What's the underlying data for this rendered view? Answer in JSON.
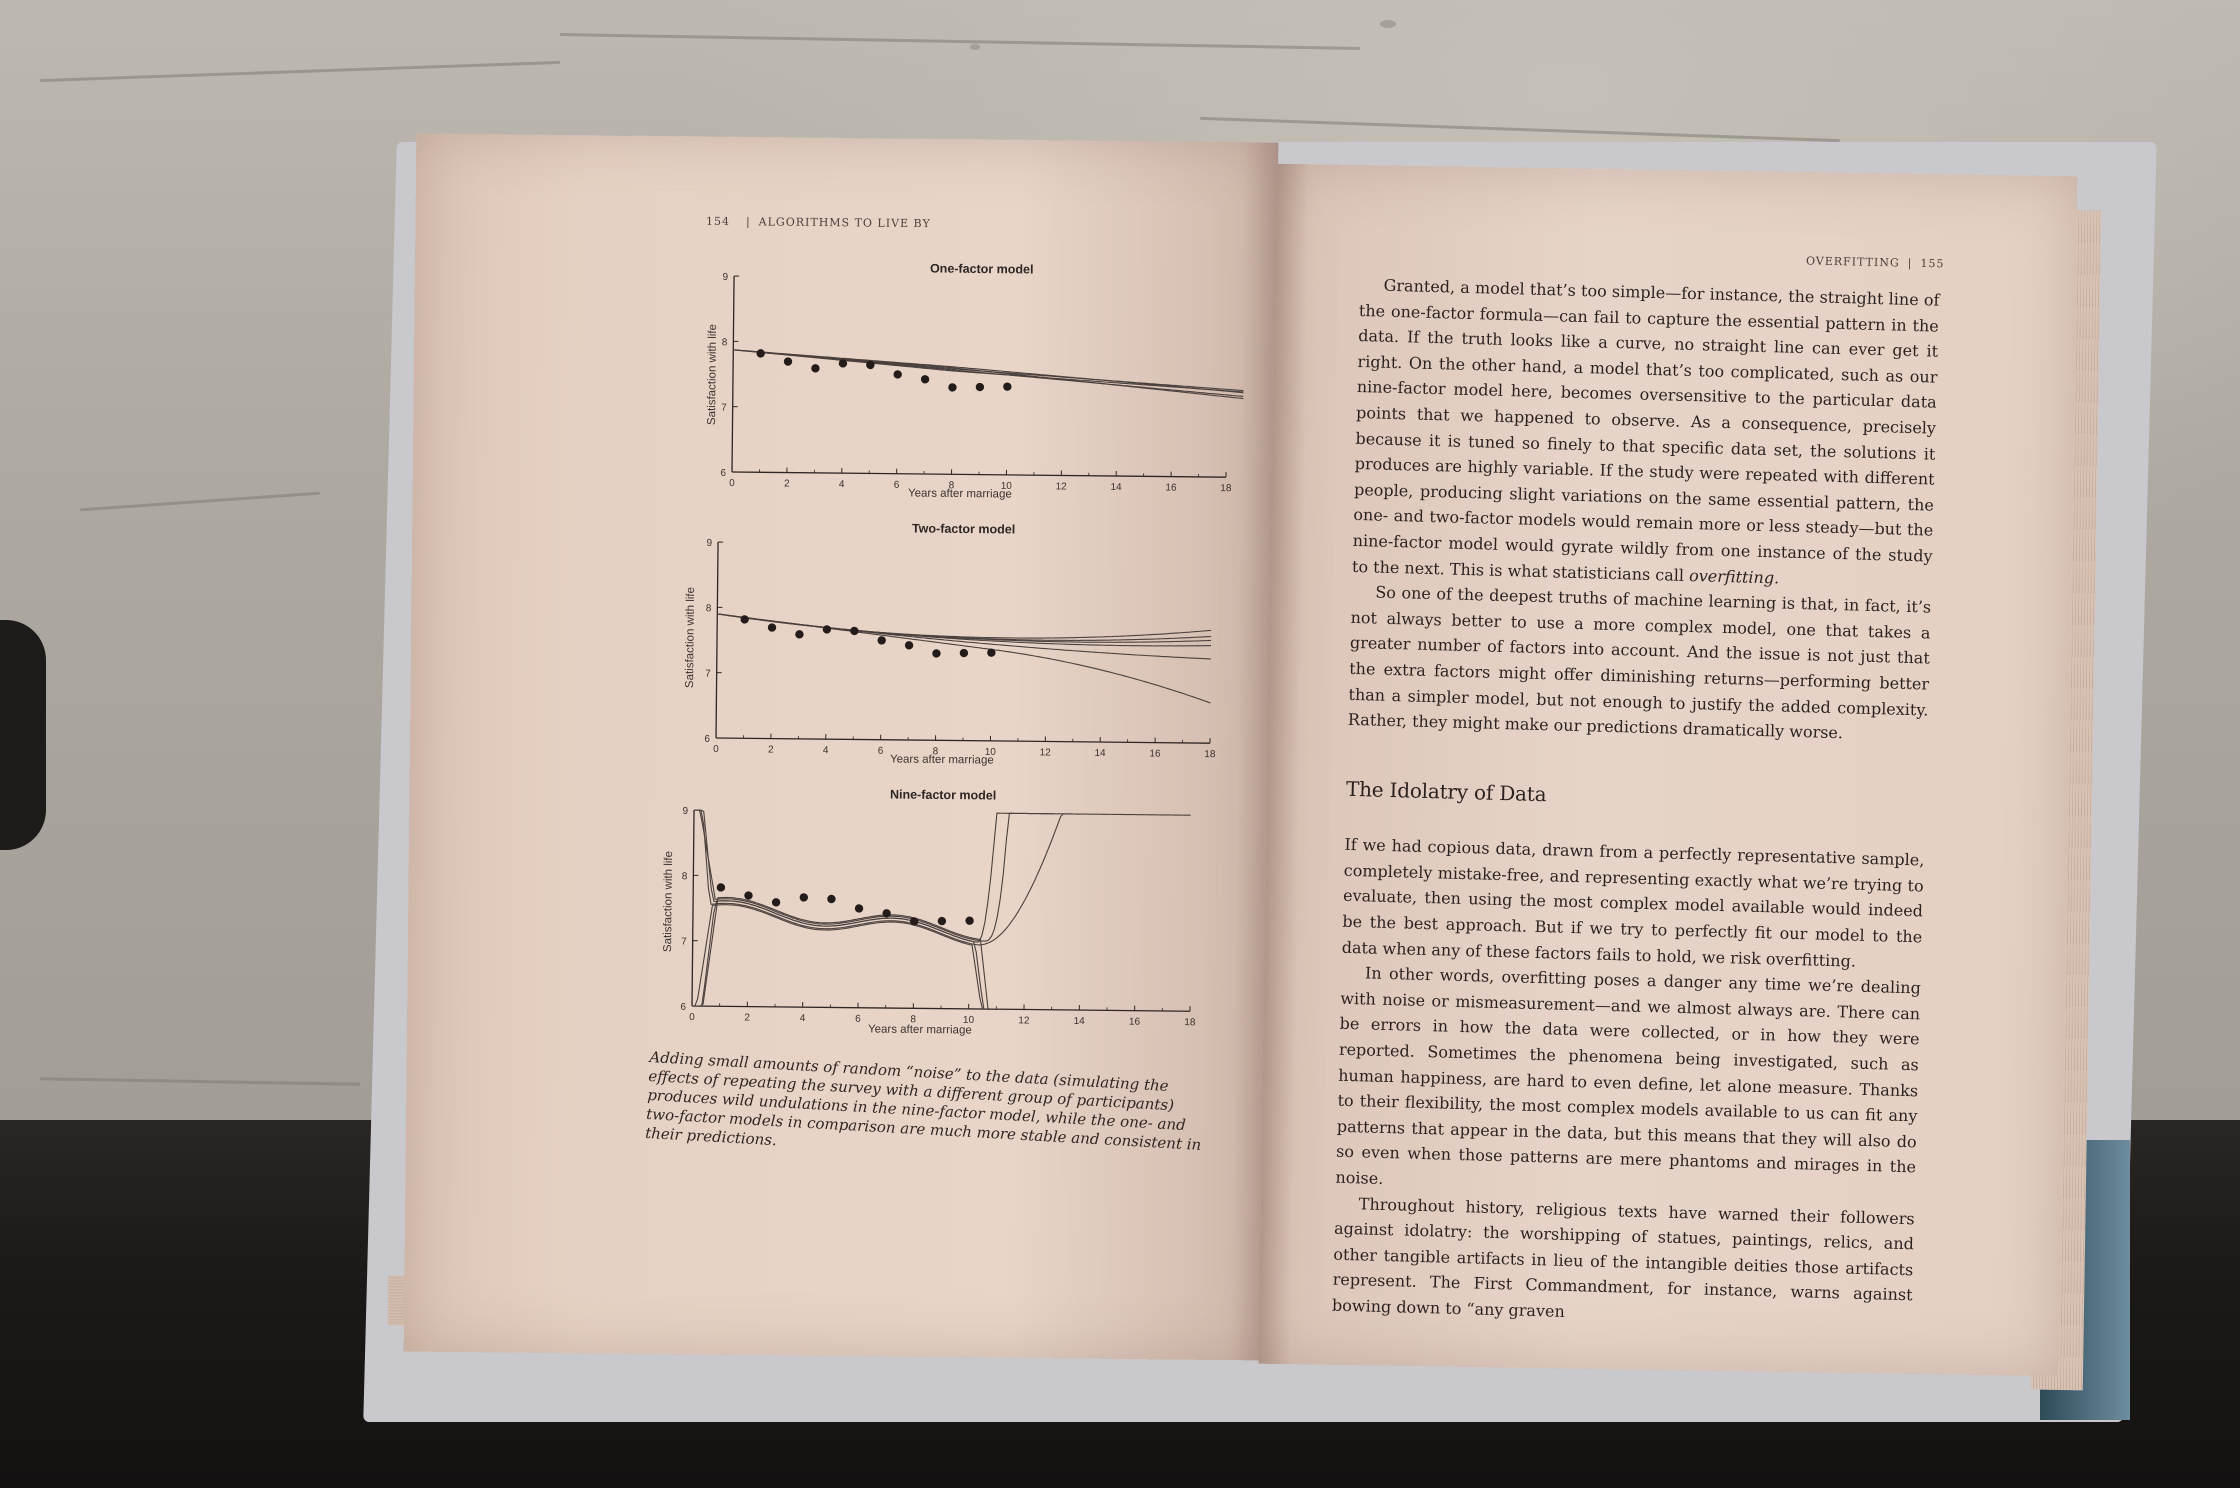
{
  "left_page": {
    "folio": "154",
    "running_head": "ALGORITHMS TO LIVE BY",
    "figures": [
      {
        "title": "One-factor model",
        "ylabel": "Satisfaction with life",
        "xlabel": "Years after marriage"
      },
      {
        "title": "Two-factor model",
        "ylabel": "Satisfaction with life",
        "xlabel": "Years after marriage"
      },
      {
        "title": "Nine-factor model",
        "ylabel": "Satisfaction with life",
        "xlabel": "Years after marriage"
      }
    ],
    "caption": "Adding small amounts of random “noise” to the data (simulating the effects of repeating the survey with a different group of participants) produces wild undulations in the nine-factor model, while the one- and two-factor models in comparison are much more stable and consistent in their predictions."
  },
  "right_page": {
    "folio": "155",
    "running_head": "OVERFITTING",
    "p1": "Granted, a model that’s too simple—for instance, the straight line of the one-factor formula—can fail to capture the essential pattern in the data. If the truth looks like a curve, no straight line can ever get it right. On the other hand, a model that’s too complicated, such as our nine-factor model here, becomes oversensitive to the particular data points that we happened to observe. As a consequence, precisely because it is tuned so finely to that specific data set, the solutions it produces are highly variable. If the study were repeated with different people, producing slight variations on the same essential pattern, the one- and two-factor models would remain more or less steady—but the nine-factor model would gyrate wildly from one instance of the study to the next. This is what statisticians call",
    "p1_term": "overfitting.",
    "p2": "So one of the deepest truths of machine learning is that, in fact, it’s not always better to use a more complex model, one that takes a greater number of factors into account. And the issue is not just that the extra factors might offer diminishing returns—performing better than a simpler model, but not enough to justify the added complexity. Rather, they might make our predictions dramatically worse.",
    "heading": "The Idolatry of Data",
    "p3": "If we had copious data, drawn from a perfectly representative sample, completely mistake-free, and representing exactly what we’re trying to evaluate, then using the most complex model available would indeed be the best approach. But if we try to perfectly fit our model to the data when any of these factors fails to hold, we risk overfitting.",
    "p4": "In other words, overfitting poses a danger any time we’re dealing with noise or mismeasurement—and we almost always are. There can be errors in how the data were collected, or in how they were reported. Sometimes the phenomena being investigated, such as human happiness, are hard to even define, let alone measure. Thanks to their flexibility, the most complex models available to us can fit any patterns that appear in the data, but this means that they will also do so even when those patterns are mere phantoms and mirages in the noise.",
    "p5": "Throughout history, religious texts have warned their followers against idolatry: the worshipping of statues, paintings, relics, and other tangible artifacts in lieu of the intangible deities those artifacts represent. The First Commandment, for instance, warns against bowing down to “any graven"
  },
  "chart_data": [
    {
      "type": "scatter",
      "title": "One-factor model",
      "xlabel": "Years after marriage",
      "ylabel": "Satisfaction with life",
      "xlim": [
        0,
        18
      ],
      "ylim": [
        6,
        9
      ],
      "xticks": [
        "0",
        "2",
        "4",
        "6",
        "8",
        "10",
        "12",
        "14",
        "16",
        "18"
      ],
      "yticks": [
        "6",
        "7",
        "8",
        "9"
      ],
      "points": {
        "x": [
          1,
          2,
          3,
          4,
          5,
          6,
          7,
          8,
          9,
          10
        ],
        "y": [
          7.82,
          7.7,
          7.6,
          7.68,
          7.66,
          7.52,
          7.45,
          7.33,
          7.34,
          7.35
        ]
      },
      "model_curves": "straight-line fits, slight divergence beyond x=10"
    },
    {
      "type": "scatter",
      "title": "Two-factor model",
      "xlabel": "Years after marriage",
      "ylabel": "Satisfaction with life",
      "xlim": [
        0,
        18
      ],
      "ylim": [
        6,
        9
      ],
      "xticks": [
        "0",
        "2",
        "4",
        "6",
        "8",
        "10",
        "12",
        "14",
        "16",
        "18"
      ],
      "yticks": [
        "6",
        "7",
        "8",
        "9"
      ],
      "points": {
        "x": [
          1,
          2,
          3,
          4,
          5,
          6,
          7,
          8,
          9,
          10
        ],
        "y": [
          7.82,
          7.7,
          7.6,
          7.68,
          7.66,
          7.52,
          7.45,
          7.33,
          7.34,
          7.35
        ]
      },
      "model_curves": "quadratic fits, fanning out beyond x=10"
    },
    {
      "type": "scatter",
      "title": "Nine-factor model",
      "xlabel": "Years after marriage",
      "ylabel": "Satisfaction with life",
      "xlim": [
        0,
        18
      ],
      "ylim": [
        6,
        9
      ],
      "xticks": [
        "0",
        "2",
        "4",
        "6",
        "8",
        "10",
        "12",
        "14",
        "16",
        "18"
      ],
      "yticks": [
        "6",
        "7",
        "8",
        "9"
      ],
      "points": {
        "x": [
          1,
          2,
          3,
          4,
          5,
          6,
          7,
          8,
          9,
          10
        ],
        "y": [
          7.82,
          7.7,
          7.6,
          7.68,
          7.66,
          7.52,
          7.45,
          7.33,
          7.34,
          7.35
        ]
      },
      "model_curves": "high-order polynomial fits swinging wildly below x=1 and beyond x=10"
    }
  ]
}
